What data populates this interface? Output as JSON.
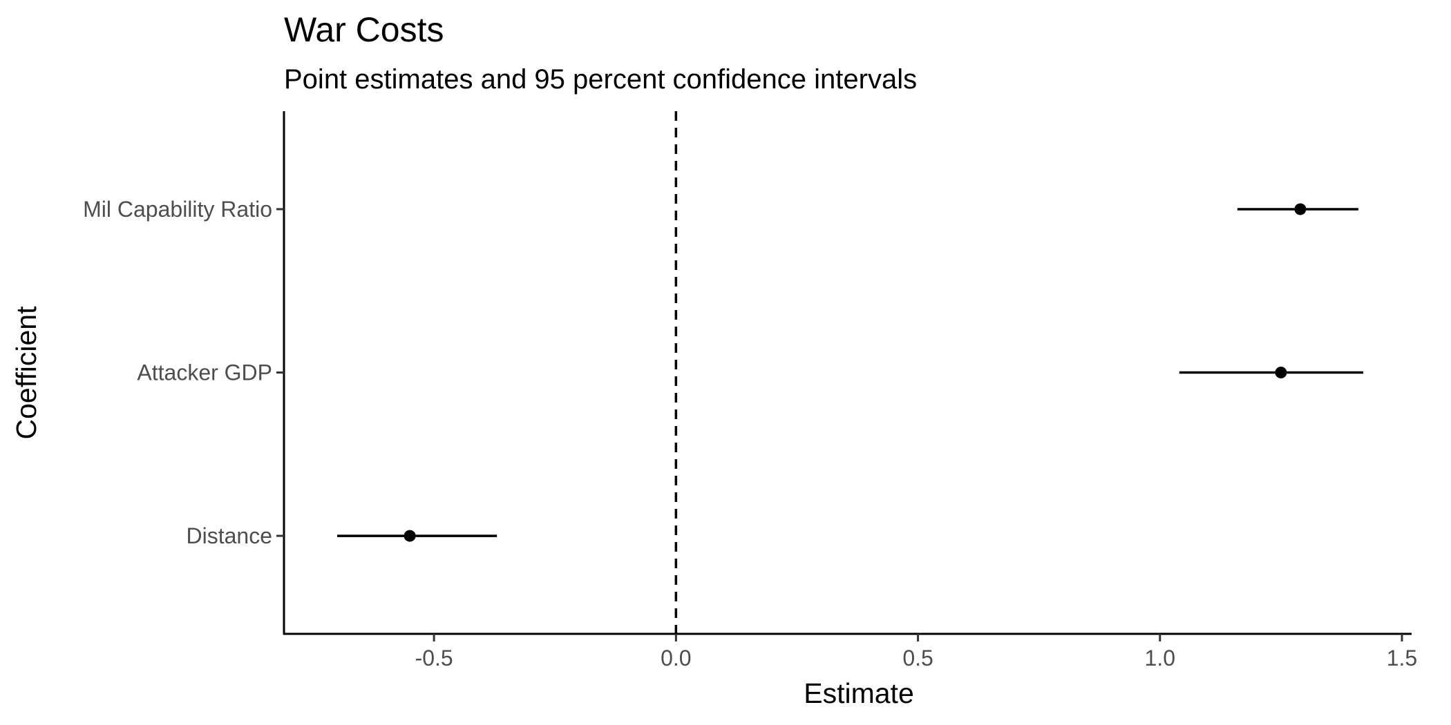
{
  "chart_data": {
    "type": "scatter",
    "title": "War Costs",
    "subtitle": "Point estimates and 95 percent confidence intervals",
    "xlabel": "Estimate",
    "ylabel": "Coefficient",
    "xlim": [
      -0.81,
      1.52
    ],
    "x_ticks": [
      -0.5,
      0.0,
      0.5,
      1.0,
      1.5
    ],
    "x_tick_labels": [
      "-0.5",
      "0.0",
      "0.5",
      "1.0",
      "1.5"
    ],
    "reference_line": {
      "x": 0.0,
      "style": "dashed"
    },
    "grid": false,
    "legend": "none",
    "categories": [
      "Mil Capability Ratio",
      "Attacker GDP",
      "Distance"
    ],
    "points": [
      {
        "label": "Mil Capability Ratio",
        "estimate": 1.29,
        "lower": 1.16,
        "upper": 1.41
      },
      {
        "label": "Attacker GDP",
        "estimate": 1.25,
        "lower": 1.04,
        "upper": 1.42
      },
      {
        "label": "Distance",
        "estimate": -0.55,
        "lower": -0.7,
        "upper": -0.37
      }
    ],
    "colors": {
      "marks": "#000000",
      "tick_labels": "#4d4d4d"
    }
  }
}
